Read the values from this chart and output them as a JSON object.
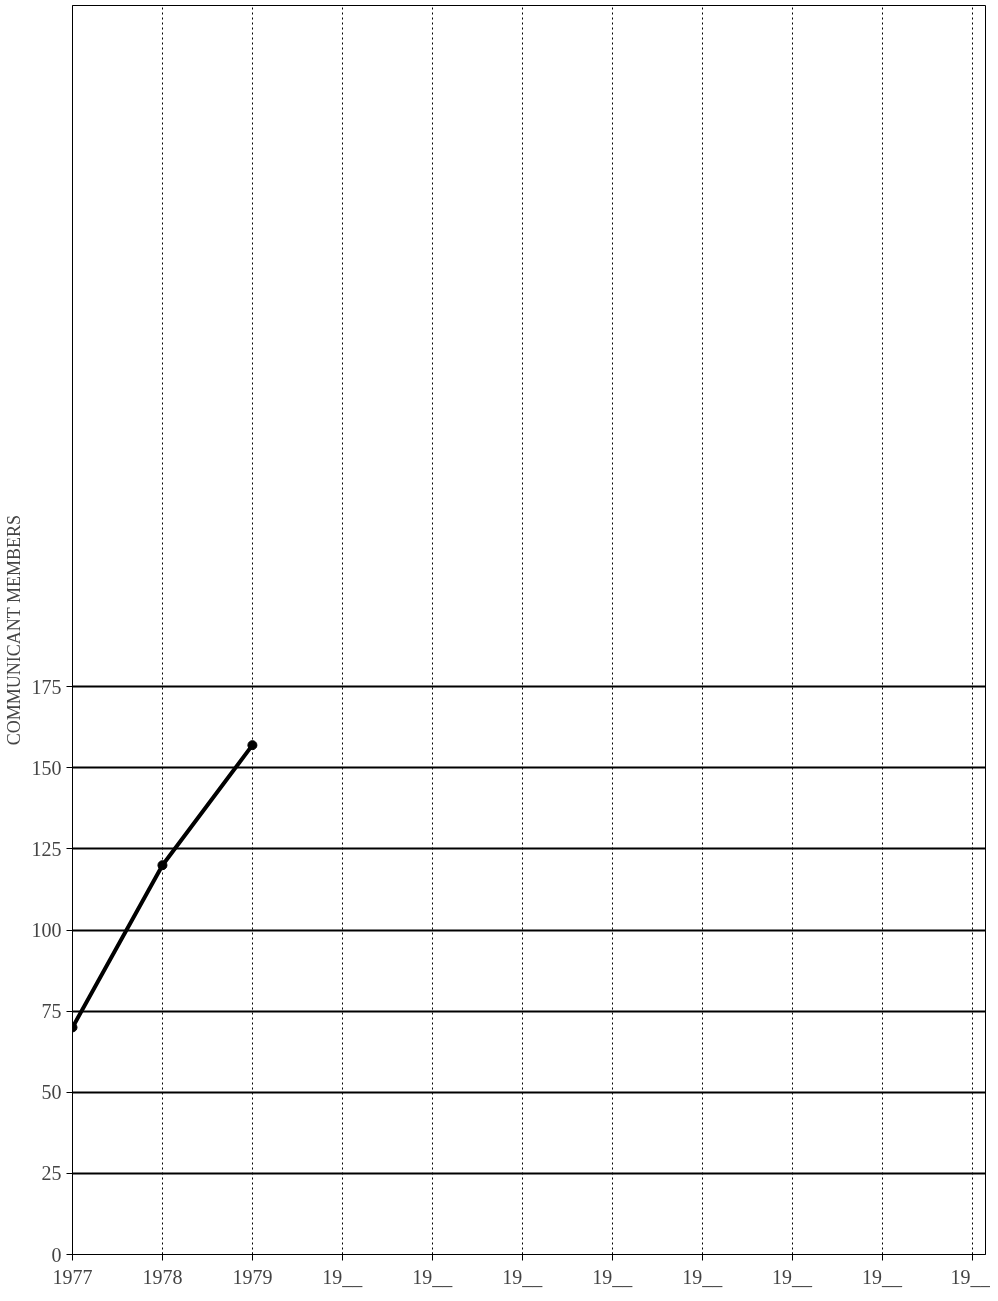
{
  "chart_data": {
    "type": "line",
    "ylabel": "COMMUNICANT MEMBERS",
    "categories": [
      "1977",
      "1978",
      "1979",
      "19__",
      "19__",
      "19__",
      "19__",
      "19__",
      "19__",
      "19__",
      "19__"
    ],
    "series": [
      {
        "color": "#000000",
        "values": [
          70,
          120,
          157,
          null,
          null,
          null,
          null,
          null,
          null,
          null,
          null
        ]
      }
    ],
    "ylim": [
      0,
      385
    ],
    "yticks": [
      0,
      25,
      50,
      75,
      100,
      125,
      150,
      175
    ],
    "grid": true,
    "marker": "circle",
    "line_style": "solid"
  }
}
